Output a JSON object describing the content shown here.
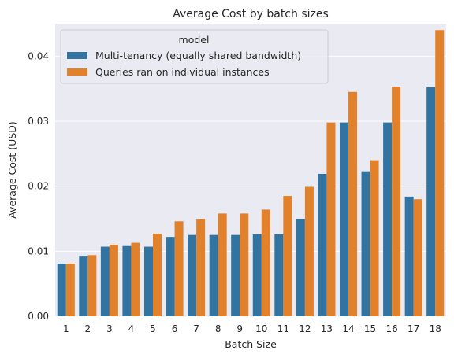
{
  "chart_data": {
    "type": "bar",
    "title": "Average Cost by batch sizes",
    "xlabel": "Batch Size",
    "ylabel": "Average Cost (USD)",
    "ylim": [
      0,
      0.045
    ],
    "yticks": [
      "0.00",
      "0.01",
      "0.02",
      "0.03",
      "0.04"
    ],
    "ytick_values": [
      0,
      0.01,
      0.02,
      0.03,
      0.04
    ],
    "grid": true,
    "legend": {
      "title": "model",
      "placement": "upper-left"
    },
    "categories": [
      "1",
      "2",
      "3",
      "4",
      "5",
      "6",
      "7",
      "8",
      "9",
      "10",
      "11",
      "12",
      "13",
      "14",
      "15",
      "16",
      "17",
      "18"
    ],
    "series": [
      {
        "name": "Multi-tenancy (equally shared bandwidth)",
        "color": "#3274a1",
        "values": [
          0.0081,
          0.0093,
          0.0107,
          0.0108,
          0.0107,
          0.0122,
          0.0125,
          0.0125,
          0.0125,
          0.0126,
          0.0126,
          0.015,
          0.0219,
          0.0298,
          0.0223,
          0.0298,
          0.0184,
          0.0352
        ]
      },
      {
        "name": "Queries ran on individual instances",
        "color": "#e1812c",
        "values": [
          0.0081,
          0.0094,
          0.011,
          0.0113,
          0.0127,
          0.0146,
          0.015,
          0.0158,
          0.0158,
          0.0164,
          0.0185,
          0.0199,
          0.0298,
          0.0345,
          0.024,
          0.0353,
          0.018,
          0.044
        ]
      }
    ]
  },
  "colors": {
    "plot_background": "#eaeaf2",
    "grid": "#ffffff"
  }
}
